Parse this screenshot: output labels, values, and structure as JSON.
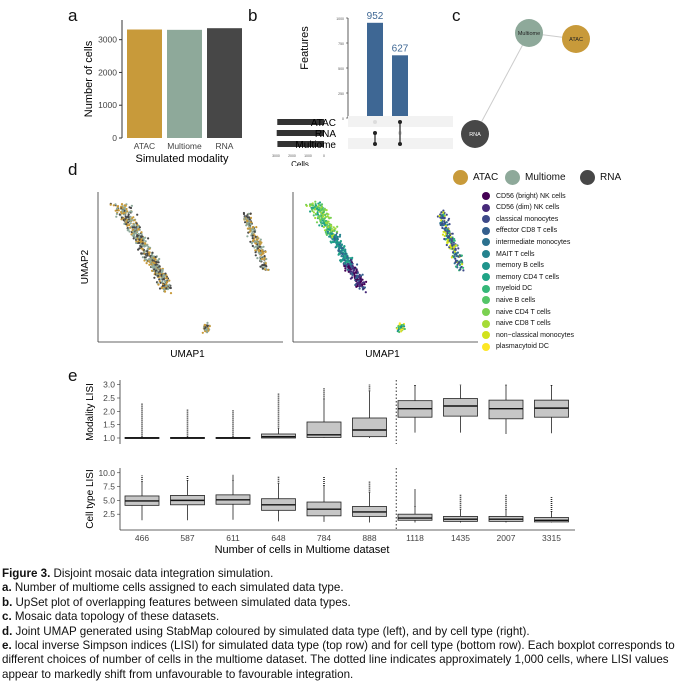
{
  "panels": {
    "a": "a",
    "b": "b",
    "c": "c",
    "d": "d",
    "e": "e"
  },
  "chart_data": [
    {
      "id": "a",
      "type": "bar",
      "categories": [
        "ATAC",
        "Multiome",
        "RNA"
      ],
      "values": [
        3310,
        3300,
        3350
      ],
      "colors": [
        "#c89a3a",
        "#8ea99a",
        "#474747"
      ],
      "ylabel": "Number of cells",
      "xlabel": "Simulated modality",
      "ylim": [
        0,
        3600
      ],
      "yticks": [
        0,
        1000,
        2000,
        3000
      ]
    },
    {
      "id": "b",
      "type": "bar",
      "ylabel": "Features",
      "values": [
        952,
        627
      ],
      "value_labels": [
        "952",
        "627"
      ],
      "ylim": [
        0,
        1000
      ],
      "yticks": [
        0,
        250,
        500,
        750,
        1000
      ],
      "sets": [
        "ATAC",
        "RNA",
        "Multiome"
      ],
      "set_size_label": "Cells",
      "set_size_ticks": [
        "3000",
        "2000",
        "1000",
        "0"
      ],
      "set_sizes": [
        3310,
        3350,
        3300
      ],
      "bar_color": "#3e6794"
    },
    {
      "id": "c",
      "type": "network",
      "nodes": [
        {
          "label": "Multiome",
          "color": "#8ea99a"
        },
        {
          "label": "ATAC",
          "color": "#c89a3a"
        },
        {
          "label": "RNA",
          "color": "#474747"
        }
      ]
    },
    {
      "id": "e",
      "type": "boxplot",
      "xlabel": "Number of cells in Multiome dataset",
      "categories": [
        "466",
        "587",
        "611",
        "648",
        "784",
        "888",
        "1118",
        "1435",
        "2007",
        "3315"
      ],
      "rows": [
        {
          "ylabel": "Modality LISI",
          "ylim": [
            0.85,
            3.1
          ],
          "yticks": [
            "1.0",
            "1.5",
            "2.0",
            "2.5",
            "3.0"
          ],
          "boxes": [
            {
              "q1": 1.0,
              "med": 1.0,
              "q3": 1.02,
              "lo": 1.0,
              "hi": 1.05,
              "outmax": 2.3
            },
            {
              "q1": 1.0,
              "med": 1.0,
              "q3": 1.02,
              "lo": 1.0,
              "hi": 1.05,
              "outmax": 2.1
            },
            {
              "q1": 1.0,
              "med": 1.0,
              "q3": 1.02,
              "lo": 1.0,
              "hi": 1.05,
              "outmax": 2.05
            },
            {
              "q1": 1.0,
              "med": 1.05,
              "q3": 1.15,
              "lo": 1.0,
              "hi": 1.35,
              "outmax": 2.7
            },
            {
              "q1": 1.02,
              "med": 1.12,
              "q3": 1.6,
              "lo": 1.0,
              "hi": 2.45,
              "outmax": 2.9
            },
            {
              "q1": 1.05,
              "med": 1.3,
              "q3": 1.75,
              "lo": 1.0,
              "hi": 2.75,
              "outmax": 3.0
            },
            {
              "q1": 1.78,
              "med": 2.1,
              "q3": 2.4,
              "lo": 1.2,
              "hi": 2.95,
              "outmax": 3.0
            },
            {
              "q1": 1.82,
              "med": 2.2,
              "q3": 2.48,
              "lo": 1.2,
              "hi": 2.98,
              "outmax": 3.0
            },
            {
              "q1": 1.72,
              "med": 2.1,
              "q3": 2.42,
              "lo": 1.15,
              "hi": 2.97,
              "outmax": 3.0
            },
            {
              "q1": 1.78,
              "med": 2.12,
              "q3": 2.42,
              "lo": 1.18,
              "hi": 2.95,
              "outmax": 3.0
            }
          ]
        },
        {
          "ylabel": "Cell type LISI",
          "ylim": [
            0,
            10.5
          ],
          "yticks": [
            "2.5",
            "5.0",
            "7.5",
            "10.0"
          ],
          "boxes": [
            {
              "q1": 4.1,
              "med": 4.9,
              "q3": 5.8,
              "lo": 1.4,
              "hi": 8.3,
              "outmax": 9.5
            },
            {
              "q1": 4.2,
              "med": 5.0,
              "q3": 5.9,
              "lo": 1.4,
              "hi": 8.5,
              "outmax": 9.6
            },
            {
              "q1": 4.3,
              "med": 5.1,
              "q3": 6.0,
              "lo": 1.5,
              "hi": 8.6,
              "outmax": 9.7
            },
            {
              "q1": 3.2,
              "med": 4.2,
              "q3": 5.3,
              "lo": 1.2,
              "hi": 8.0,
              "outmax": 9.3
            },
            {
              "q1": 2.2,
              "med": 3.4,
              "q3": 4.7,
              "lo": 1.1,
              "hi": 7.6,
              "outmax": 9.3
            },
            {
              "q1": 2.1,
              "med": 2.9,
              "q3": 3.9,
              "lo": 1.0,
              "hi": 6.4,
              "outmax": 8.5
            },
            {
              "q1": 1.4,
              "med": 1.8,
              "q3": 2.5,
              "lo": 1.0,
              "hi": 3.9,
              "outmax": 7.0
            },
            {
              "q1": 1.2,
              "med": 1.6,
              "q3": 2.1,
              "lo": 1.0,
              "hi": 3.3,
              "outmax": 6.2
            },
            {
              "q1": 1.2,
              "med": 1.6,
              "q3": 2.1,
              "lo": 1.0,
              "hi": 3.3,
              "outmax": 6.0
            },
            {
              "q1": 1.1,
              "med": 1.4,
              "q3": 1.9,
              "lo": 1.0,
              "hi": 2.9,
              "outmax": 5.6
            }
          ]
        }
      ]
    }
  ],
  "umap": {
    "xlabel": "UMAP1",
    "ylabel": "UMAP2",
    "modality_legend": [
      {
        "label": "ATAC",
        "color": "#c89a3a"
      },
      {
        "label": "Multiome",
        "color": "#8ea99a"
      },
      {
        "label": "RNA",
        "color": "#474747"
      }
    ],
    "celltype_legend": [
      {
        "label": "CD56 (bright) NK cells",
        "color": "#440154"
      },
      {
        "label": "CD56 (dim) NK cells",
        "color": "#472a7a"
      },
      {
        "label": "classical monocytes",
        "color": "#3e4a89"
      },
      {
        "label": "effector CD8 T cells",
        "color": "#355f8d"
      },
      {
        "label": "intermediate monocytes",
        "color": "#2c718e"
      },
      {
        "label": "MAIT T cells",
        "color": "#25838e"
      },
      {
        "label": "memory B cells",
        "color": "#1f948c"
      },
      {
        "label": "memory CD4 T cells",
        "color": "#20a486"
      },
      {
        "label": "myeloid DC",
        "color": "#35b779"
      },
      {
        "label": "naive B cells",
        "color": "#54c568"
      },
      {
        "label": "naive CD4 T cells",
        "color": "#7ad151"
      },
      {
        "label": "naive CD8 T cells",
        "color": "#a5db36"
      },
      {
        "label": "non−classical monocytes",
        "color": "#d2e21b"
      },
      {
        "label": "plasmacytoid DC",
        "color": "#fde725"
      }
    ]
  },
  "caption": {
    "title_bold": "Figure 3.",
    "title_rest": " Disjoint mosaic data integration simulation.",
    "items": [
      {
        "key": "a.",
        "text": " Number of multiome cells assigned to each simulated data type."
      },
      {
        "key": "b.",
        "text": " UpSet plot of overlapping features between simulated data types."
      },
      {
        "key": "c.",
        "text": " Mosaic data topology of these datasets."
      },
      {
        "key": "d.",
        "text": " Joint UMAP generated using StabMap coloured by simulated data type (left), and by cell type (right)."
      },
      {
        "key": "e.",
        "text": " local inverse Simpson indices (LISI) for simulated data type (top row) and for cell type (bottom row). Each boxplot corresponds to different choices of number of cells in the multiome dataset. The dotted line indicates approximately 1,000 cells, where LISI values appear to markedly shift from unfavourable to favourable integration."
      }
    ]
  }
}
